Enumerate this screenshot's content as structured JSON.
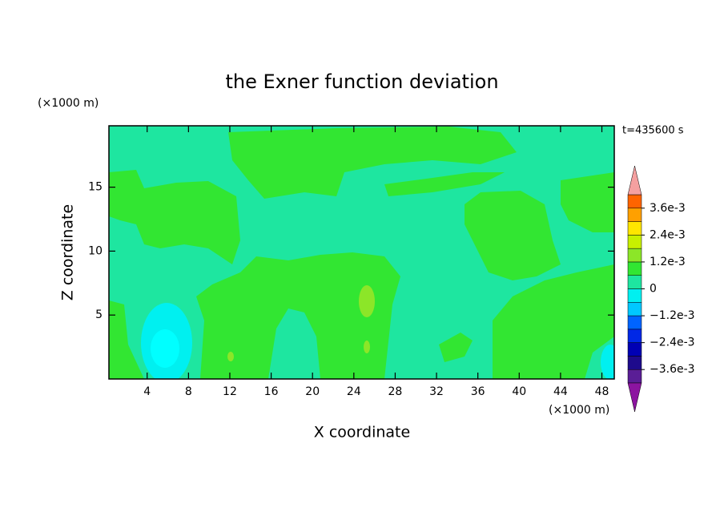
{
  "chart_data": {
    "type": "contour",
    "title": "the Exner function deviation",
    "x_label": "X coordinate",
    "y_label": "Z coordinate",
    "x_unit": "(×1000 m)",
    "y_unit": "(×1000 m)",
    "annotation": "t=435600 s",
    "xlim": [
      0.3,
      49.2
    ],
    "ylim": [
      0,
      19.8
    ],
    "xticks": [
      4,
      8,
      12,
      16,
      20,
      24,
      28,
      32,
      36,
      40,
      44,
      48
    ],
    "yticks": [
      5,
      10,
      15
    ],
    "colorbar": {
      "levels": [
        -0.0042,
        -0.0036,
        -0.003,
        -0.0024,
        -0.0018,
        -0.0012,
        -0.0006,
        0,
        0.0006,
        0.0012,
        0.0018,
        0.0024,
        0.003,
        0.0036,
        0.0042
      ],
      "colors": [
        "#5a1e96",
        "#1e0a8c",
        "#0000b4",
        "#0028e6",
        "#0064ff",
        "#00c8ff",
        "#00f0f0",
        "#1ee6a0",
        "#32e632",
        "#8ce628",
        "#c8f000",
        "#ffe600",
        "#ffa000",
        "#ff6400"
      ],
      "under_color": "#8c14a0",
      "over_color": "#f5a0a0",
      "ticks": [
        {
          "value": 0.0036,
          "label": "3.6e-3"
        },
        {
          "value": 0.0024,
          "label": "2.4e-3"
        },
        {
          "value": 0.0012,
          "label": "1.2e-3"
        },
        0,
        {
          "value": -0.0012,
          "label": "−1.2e-3"
        },
        {
          "value": -0.0024,
          "label": "−2.4e-3"
        },
        {
          "value": -0.0036,
          "label": "−3.6e-3"
        }
      ]
    }
  }
}
